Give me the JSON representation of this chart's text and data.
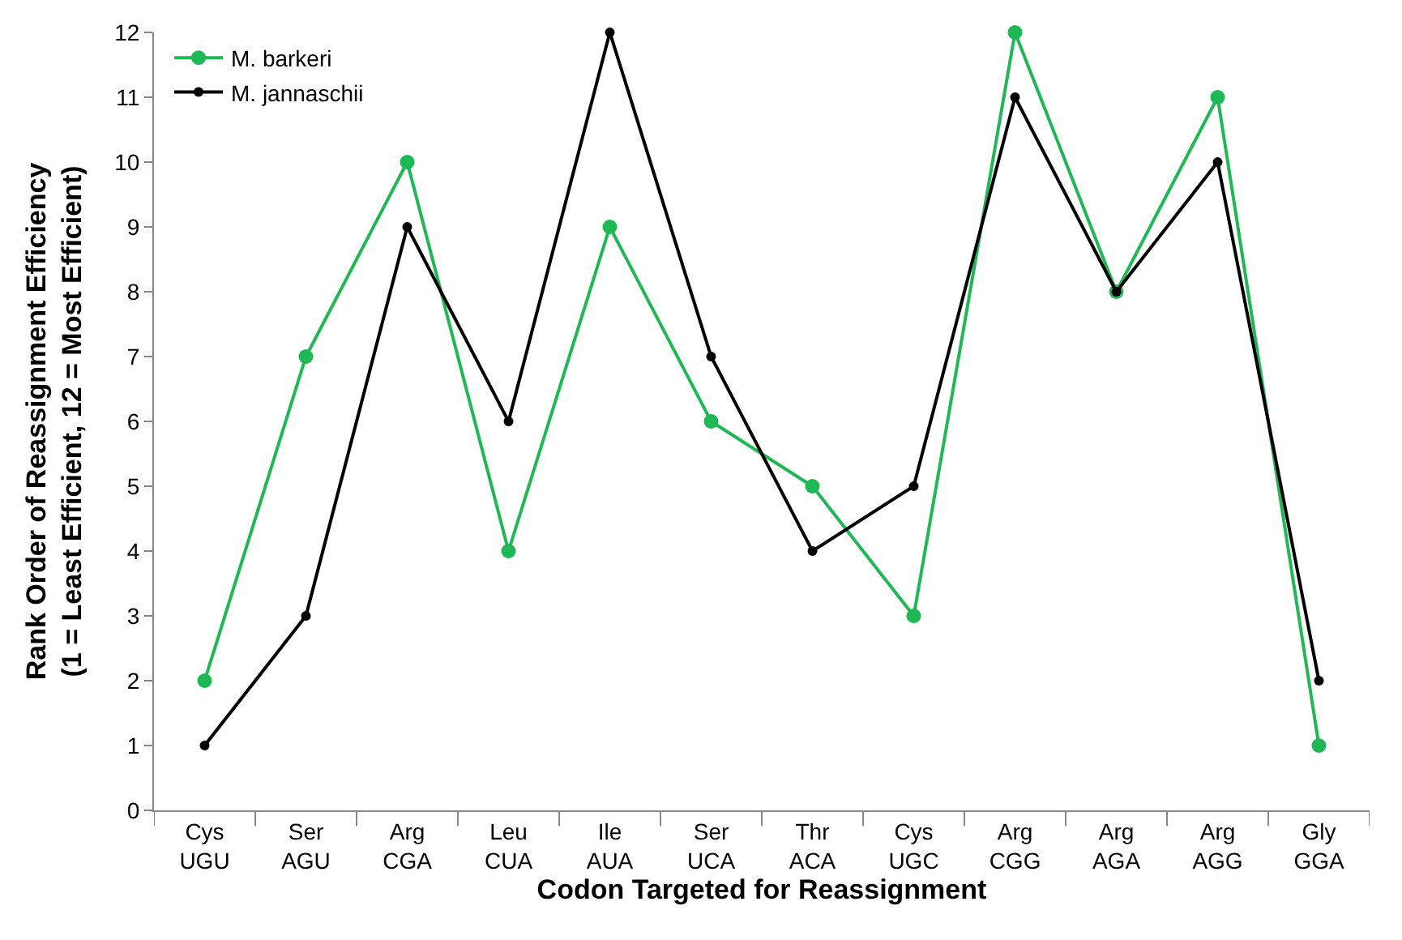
{
  "chart_data": {
    "type": "line",
    "xlabel": "Codon Targeted for Reassignment",
    "ylabel": "Rank Order of Reassignment Efficiency\n(1 = Least Efficient, 12 = Most Efficient)",
    "categories": [
      "Cys\nUGU",
      "Ser\nAGU",
      "Arg\nCGA",
      "Leu\nCUA",
      "Ile\nAUA",
      "Ser\nUCA",
      "Thr\nACA",
      "Cys\nUGC",
      "Arg\nCGG",
      "Arg\nAGA",
      "Arg\nAGG",
      "Gly\nGGA"
    ],
    "series": [
      {
        "name": "M. barkeri",
        "color": "#1db954",
        "values": [
          2,
          7,
          10,
          4,
          9,
          6,
          5,
          3,
          12,
          8,
          11,
          1
        ]
      },
      {
        "name": "M. jannaschii",
        "color": "#000000",
        "values": [
          1,
          3,
          9,
          6,
          12,
          7,
          4,
          5,
          11,
          8,
          10,
          2
        ]
      }
    ],
    "ylim": [
      0,
      12
    ],
    "yticks": [
      0,
      1,
      2,
      3,
      4,
      5,
      6,
      7,
      8,
      9,
      10,
      11,
      12
    ],
    "legend": "top left",
    "marker": "circle",
    "line_style": "solid"
  }
}
